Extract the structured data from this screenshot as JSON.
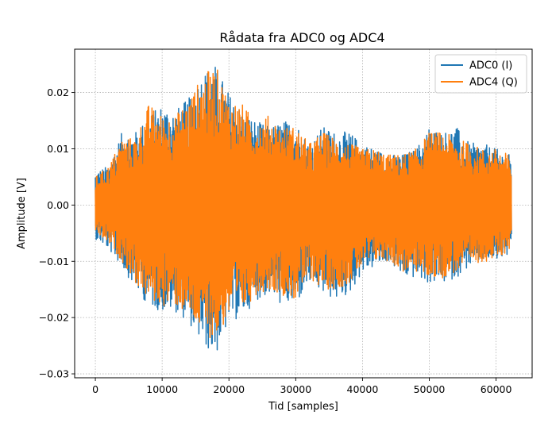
{
  "chart_data": {
    "type": "line",
    "title": "Rådata fra ADC0 og ADC4",
    "xlabel": "Tid [samples]",
    "ylabel": "Amplitude [V]",
    "xlim": [
      -3100,
      65400
    ],
    "ylim": [
      -0.0307,
      0.0277
    ],
    "xticks": [
      0,
      10000,
      20000,
      30000,
      40000,
      50000,
      60000
    ],
    "xtick_labels": [
      "0",
      "10000",
      "20000",
      "30000",
      "40000",
      "50000",
      "60000"
    ],
    "yticks": [
      -0.03,
      -0.02,
      -0.01,
      0.0,
      0.01,
      0.02
    ],
    "ytick_labels": [
      "−0.03",
      "−0.02",
      "−0.01",
      "0.00",
      "0.01",
      "0.02"
    ],
    "grid": true,
    "legend_position": "top-right",
    "series": [
      {
        "name": "ADC0 (I)",
        "color": "#1f77b4",
        "x": [
          0,
          2000,
          4000,
          6000,
          8000,
          10000,
          12000,
          14000,
          16000,
          18000,
          20000,
          22000,
          24000,
          26000,
          28000,
          30000,
          32000,
          34000,
          36000,
          38000,
          40000,
          42000,
          44000,
          46000,
          48000,
          50000,
          52000,
          54000,
          56000,
          58000,
          60000,
          62000
        ],
        "max": [
          0.006,
          0.007,
          0.013,
          0.013,
          0.016,
          0.018,
          0.017,
          0.019,
          0.024,
          0.025,
          0.02,
          0.017,
          0.015,
          0.014,
          0.015,
          0.015,
          0.011,
          0.014,
          0.013,
          0.013,
          0.011,
          0.01,
          0.009,
          0.009,
          0.01,
          0.014,
          0.013,
          0.014,
          0.011,
          0.011,
          0.01,
          0.009
        ],
        "min": [
          -0.006,
          -0.008,
          -0.011,
          -0.015,
          -0.018,
          -0.019,
          -0.019,
          -0.021,
          -0.025,
          -0.027,
          -0.021,
          -0.02,
          -0.017,
          -0.016,
          -0.018,
          -0.018,
          -0.014,
          -0.016,
          -0.017,
          -0.016,
          -0.012,
          -0.011,
          -0.01,
          -0.013,
          -0.013,
          -0.014,
          -0.014,
          -0.013,
          -0.011,
          -0.01,
          -0.01,
          -0.009
        ]
      },
      {
        "name": "ADC4 (Q)",
        "color": "#ff7f0e",
        "x": [
          0,
          2000,
          4000,
          6000,
          8000,
          10000,
          12000,
          14000,
          16000,
          18000,
          20000,
          22000,
          24000,
          26000,
          28000,
          30000,
          32000,
          34000,
          36000,
          38000,
          40000,
          42000,
          44000,
          46000,
          48000,
          50000,
          52000,
          54000,
          56000,
          58000,
          60000,
          62000
        ],
        "max": [
          0.005,
          0.007,
          0.012,
          0.012,
          0.018,
          0.016,
          0.016,
          0.019,
          0.023,
          0.025,
          0.019,
          0.018,
          0.015,
          0.016,
          0.014,
          0.014,
          0.011,
          0.013,
          0.012,
          0.011,
          0.01,
          0.01,
          0.009,
          0.009,
          0.01,
          0.013,
          0.013,
          0.012,
          0.011,
          0.01,
          0.01,
          0.009
        ],
        "min": [
          -0.005,
          -0.007,
          -0.01,
          -0.014,
          -0.017,
          -0.018,
          -0.018,
          -0.02,
          -0.023,
          -0.024,
          -0.02,
          -0.019,
          -0.016,
          -0.015,
          -0.016,
          -0.017,
          -0.013,
          -0.015,
          -0.015,
          -0.014,
          -0.011,
          -0.01,
          -0.01,
          -0.012,
          -0.012,
          -0.013,
          -0.013,
          -0.012,
          -0.011,
          -0.01,
          -0.01,
          -0.008
        ]
      }
    ]
  }
}
